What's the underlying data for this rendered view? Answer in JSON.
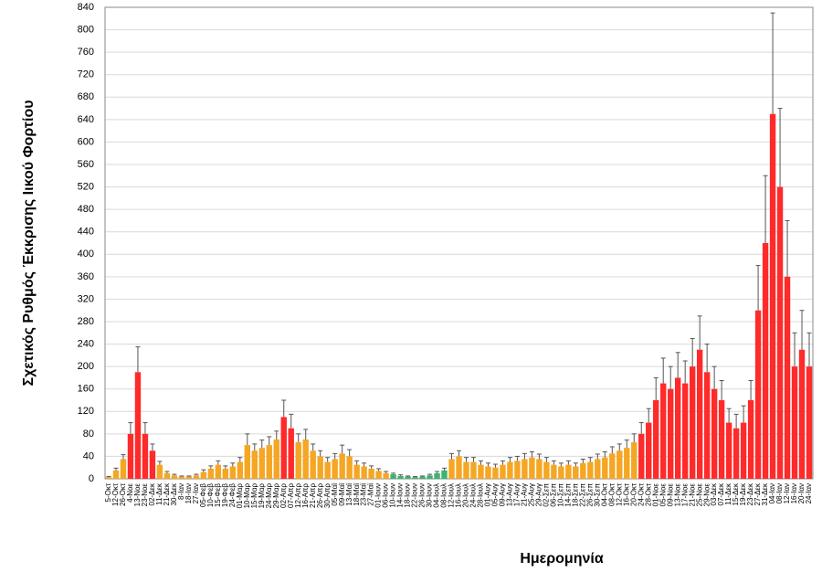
{
  "chart_data": {
    "type": "bar",
    "ylabel": "Σχετικός Ρυθμός Έκκρισης Ιικού Φορτίου",
    "xlabel": "Ημερομηνία",
    "categories": [
      "5-Οκτ",
      "12-Οκτ",
      "26-Οκτ",
      "4-Νοε",
      "13-Νοε",
      "23-Νοε",
      "02-Δεκ",
      "11-Δεκ",
      "21-Δεκ",
      "30-Δεκ",
      "8-Ιαν",
      "18-Ιαν",
      "27-Ιαν",
      "05-Φεβ",
      "10-Φεβ",
      "15-Φεβ",
      "19-Φεβ",
      "24-Φεβ",
      "01-Μαρ",
      "10-Μαρ",
      "15-Μαρ",
      "19-Μαρ",
      "24-Μαρ",
      "29-Μαρ",
      "02-Απρ",
      "07-Απρ",
      "12-Απρ",
      "16-Απρ",
      "21-Απρ",
      "26-Απρ",
      "30-Απρ",
      "05-Μαϊ",
      "09-Μαϊ",
      "13-Μαϊ",
      "18-Μαϊ",
      "23-Μαϊ",
      "27-Μαϊ",
      "01-Ιουν",
      "06-Ιουν",
      "10-Ιουν",
      "14-Ιουν",
      "18-Ιουν",
      "22-Ιουν",
      "26-Ιουν",
      "30-Ιουν",
      "04-Ιουλ",
      "08-Ιουλ",
      "12-Ιουλ",
      "16-Ιουλ",
      "20-Ιουλ",
      "24-Ιουλ",
      "28-Ιουλ",
      "01-Αυγ",
      "05-Αυγ",
      "09-Αυγ",
      "13-Αυγ",
      "17-Αυγ",
      "21-Αυγ",
      "25-Αυγ",
      "29-Αυγ",
      "02-Σεπ",
      "06-Σεπ",
      "10-Σεπ",
      "14-Σεπ",
      "18-Σεπ",
      "22-Σεπ",
      "26-Σεπ",
      "30-Σεπ",
      "04-Οκτ",
      "08-Οκτ",
      "12-Οκτ",
      "16-Οκτ",
      "20-Οκτ",
      "24-Οκτ",
      "28-Οκτ",
      "01-Νοε",
      "05-Νοε",
      "09-Νοε",
      "13-Νοε",
      "17-Νοε",
      "21-Νοε",
      "25-Νοε",
      "29-Νοε",
      "03-Δεκ",
      "07-Δεκ",
      "11-Δεκ",
      "15-Δεκ",
      "19-Δεκ",
      "23-Δεκ",
      "27-Δεκ",
      "31-Δεκ",
      "04-Ιαν",
      "08-Ιαν",
      "12-Ιαν",
      "16-Ιαν",
      "20-Ιαν",
      "24-Ιαν"
    ],
    "values": [
      3,
      15,
      35,
      80,
      190,
      80,
      50,
      25,
      10,
      6,
      4,
      4,
      6,
      12,
      18,
      25,
      18,
      22,
      30,
      60,
      50,
      55,
      60,
      70,
      110,
      90,
      65,
      70,
      50,
      40,
      30,
      35,
      45,
      40,
      25,
      22,
      18,
      14,
      10,
      8,
      5,
      4,
      3,
      4,
      6,
      10,
      15,
      35,
      40,
      30,
      30,
      25,
      22,
      20,
      25,
      30,
      32,
      35,
      38,
      35,
      30,
      25,
      22,
      25,
      22,
      28,
      30,
      35,
      38,
      45,
      50,
      55,
      65,
      80,
      100,
      140,
      170,
      160,
      180,
      170,
      200,
      230,
      190,
      160,
      140,
      100,
      90,
      100,
      140,
      300,
      420,
      650,
      520,
      360,
      200,
      230,
      200
    ],
    "errors": [
      1,
      4,
      8,
      20,
      45,
      20,
      12,
      6,
      3,
      2,
      1,
      1,
      2,
      4,
      5,
      7,
      5,
      6,
      8,
      20,
      12,
      14,
      15,
      15,
      30,
      25,
      15,
      18,
      12,
      10,
      8,
      10,
      15,
      12,
      7,
      6,
      5,
      4,
      3,
      2,
      2,
      1,
      1,
      1,
      2,
      3,
      4,
      10,
      10,
      8,
      8,
      7,
      6,
      6,
      7,
      8,
      8,
      10,
      10,
      9,
      8,
      7,
      6,
      7,
      6,
      7,
      8,
      9,
      10,
      12,
      12,
      14,
      15,
      20,
      25,
      40,
      45,
      40,
      45,
      40,
      50,
      60,
      50,
      40,
      35,
      25,
      25,
      30,
      35,
      80,
      120,
      180,
      140,
      100,
      60,
      70,
      60
    ],
    "colors": [
      "#f5a623",
      "#f5a623",
      "#f5a623",
      "#ff2a2a",
      "#ff2a2a",
      "#ff2a2a",
      "#ff2a2a",
      "#f5a623",
      "#f5a623",
      "#f5a623",
      "#f5a623",
      "#f5a623",
      "#f5a623",
      "#f5a623",
      "#f5a623",
      "#f5a623",
      "#f5a623",
      "#f5a623",
      "#f5a623",
      "#f5a623",
      "#f5a623",
      "#f5a623",
      "#f5a623",
      "#f5a623",
      "#ff2a2a",
      "#ff2a2a",
      "#f5a623",
      "#f5a623",
      "#f5a623",
      "#f5a623",
      "#f5a623",
      "#f5a623",
      "#f5a623",
      "#f5a623",
      "#f5a623",
      "#f5a623",
      "#f5a623",
      "#f5a623",
      "#f5a623",
      "#3cb371",
      "#3cb371",
      "#3cb371",
      "#3cb371",
      "#3cb371",
      "#3cb371",
      "#3cb371",
      "#3cb371",
      "#f5a623",
      "#f5a623",
      "#f5a623",
      "#f5a623",
      "#f5a623",
      "#f5a623",
      "#f5a623",
      "#f5a623",
      "#f5a623",
      "#f5a623",
      "#f5a623",
      "#f5a623",
      "#f5a623",
      "#f5a623",
      "#f5a623",
      "#f5a623",
      "#f5a623",
      "#f5a623",
      "#f5a623",
      "#f5a623",
      "#f5a623",
      "#f5a623",
      "#f5a623",
      "#f5a623",
      "#f5a623",
      "#f5a623",
      "#ff2a2a",
      "#ff2a2a",
      "#ff2a2a",
      "#ff2a2a",
      "#ff2a2a",
      "#ff2a2a",
      "#ff2a2a",
      "#ff2a2a",
      "#ff2a2a",
      "#ff2a2a",
      "#ff2a2a",
      "#ff2a2a",
      "#ff2a2a",
      "#ff2a2a",
      "#ff2a2a",
      "#ff2a2a",
      "#ff2a2a",
      "#ff2a2a",
      "#ff2a2a",
      "#ff2a2a",
      "#ff2a2a",
      "#ff2a2a",
      "#ff2a2a",
      "#ff2a2a"
    ],
    "ylim": [
      0,
      840
    ],
    "yticks": [
      0,
      40,
      80,
      120,
      160,
      200,
      240,
      280,
      320,
      360,
      400,
      440,
      480,
      520,
      560,
      600,
      640,
      680,
      720,
      760,
      800,
      840
    ],
    "grid": true
  }
}
